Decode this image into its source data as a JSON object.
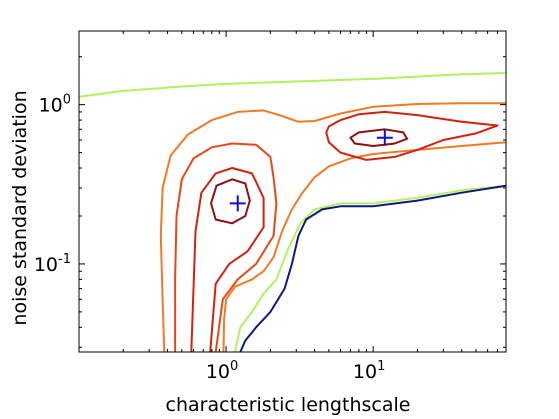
{
  "chart_data": {
    "type": "contour",
    "xlabel": "characteristic lengthscale",
    "ylabel": "noise standard deviation",
    "x_scale": "log",
    "y_scale": "log",
    "xlim": [
      0.1,
      80
    ],
    "ylim": [
      0.028,
      2.9
    ],
    "x_ticks": [
      {
        "base": "10",
        "exp": "0",
        "value": 1
      },
      {
        "base": "10",
        "exp": "1",
        "value": 10
      }
    ],
    "y_ticks": [
      {
        "base": "10",
        "exp": "-1",
        "value": 0.1
      },
      {
        "base": "10",
        "exp": "0",
        "value": 1
      }
    ],
    "grid": false,
    "contours": [
      {
        "level": 1,
        "color": "#b5f060",
        "points": [
          [
            0.1,
            1.12
          ],
          [
            0.2,
            1.22
          ],
          [
            0.5,
            1.3
          ],
          [
            1,
            1.35
          ],
          [
            2,
            1.38
          ],
          [
            5,
            1.42
          ],
          [
            10,
            1.45
          ],
          [
            20,
            1.5
          ],
          [
            40,
            1.55
          ],
          [
            80,
            1.58
          ]
        ]
      },
      {
        "level": 2,
        "color": "#f07a26",
        "points": [
          [
            0.38,
            0.028
          ],
          [
            0.37,
            0.06
          ],
          [
            0.36,
            0.15
          ],
          [
            0.37,
            0.3
          ],
          [
            0.42,
            0.48
          ],
          [
            0.55,
            0.65
          ],
          [
            0.8,
            0.8
          ],
          [
            1.2,
            0.9
          ],
          [
            1.8,
            0.92
          ],
          [
            2.4,
            0.85
          ],
          [
            3.1,
            0.78
          ],
          [
            4,
            0.79
          ],
          [
            6,
            0.88
          ],
          [
            10,
            0.97
          ],
          [
            20,
            1.01
          ],
          [
            40,
            1.02
          ],
          [
            80,
            1.02
          ]
        ]
      },
      {
        "level": 2,
        "color": "#f07a26",
        "points": [
          [
            0.96,
            0.028
          ],
          [
            0.97,
            0.045
          ],
          [
            1.0,
            0.06
          ],
          [
            1.15,
            0.072
          ],
          [
            1.5,
            0.08
          ],
          [
            1.8,
            0.09
          ],
          [
            2.1,
            0.11
          ],
          [
            2.4,
            0.16
          ],
          [
            2.8,
            0.22
          ],
          [
            3.3,
            0.28
          ],
          [
            4,
            0.35
          ],
          [
            5,
            0.41
          ],
          [
            7,
            0.46
          ],
          [
            10,
            0.49
          ],
          [
            20,
            0.52
          ],
          [
            40,
            0.55
          ],
          [
            80,
            0.58
          ]
        ]
      },
      {
        "level": 3,
        "color": "#e84818",
        "points": [
          [
            0.45,
            0.028
          ],
          [
            0.45,
            0.08
          ],
          [
            0.46,
            0.2
          ],
          [
            0.5,
            0.34
          ],
          [
            0.6,
            0.46
          ],
          [
            0.8,
            0.54
          ],
          [
            1.1,
            0.57
          ],
          [
            1.6,
            0.56
          ],
          [
            2.0,
            0.47
          ],
          [
            2.1,
            0.35
          ],
          [
            2.2,
            0.24
          ],
          [
            2.1,
            0.15
          ],
          [
            1.6,
            0.1
          ],
          [
            1.2,
            0.08
          ],
          [
            0.95,
            0.06
          ],
          [
            0.85,
            0.028
          ]
        ]
      },
      {
        "level": 4,
        "color": "#d42010",
        "points": [
          [
            0.58,
            0.028
          ],
          [
            0.6,
            0.07
          ],
          [
            0.62,
            0.16
          ],
          [
            0.68,
            0.28
          ],
          [
            0.85,
            0.37
          ],
          [
            1.1,
            0.4
          ],
          [
            1.5,
            0.37
          ],
          [
            1.8,
            0.26
          ],
          [
            1.8,
            0.17
          ],
          [
            1.4,
            0.12
          ],
          [
            1.05,
            0.1
          ],
          [
            0.85,
            0.075
          ],
          [
            0.78,
            0.028
          ]
        ]
      },
      {
        "level": 4,
        "color": "#d42010",
        "points": [
          [
            5,
            0.73
          ],
          [
            6,
            0.8
          ],
          [
            8,
            0.87
          ],
          [
            12,
            0.9
          ],
          [
            20,
            0.86
          ],
          [
            40,
            0.78
          ],
          [
            70,
            0.74
          ],
          [
            50,
            0.66
          ],
          [
            30,
            0.6
          ],
          [
            20,
            0.52
          ],
          [
            14,
            0.47
          ],
          [
            9,
            0.45
          ],
          [
            6,
            0.5
          ],
          [
            5,
            0.58
          ],
          [
            4.8,
            0.67
          ],
          [
            5,
            0.73
          ]
        ]
      },
      {
        "level": 5,
        "color": "#8c1010",
        "points": [
          [
            0.79,
            0.24
          ],
          [
            0.86,
            0.31
          ],
          [
            1.1,
            0.34
          ],
          [
            1.35,
            0.32
          ],
          [
            1.45,
            0.25
          ],
          [
            1.35,
            0.2
          ],
          [
            1.1,
            0.18
          ],
          [
            0.85,
            0.19
          ],
          [
            0.79,
            0.24
          ]
        ]
      },
      {
        "level": 5,
        "color": "#8c1010",
        "points": [
          [
            7,
            0.62
          ],
          [
            8,
            0.67
          ],
          [
            12,
            0.7
          ],
          [
            16,
            0.67
          ],
          [
            17,
            0.61
          ],
          [
            14,
            0.57
          ],
          [
            10,
            0.55
          ],
          [
            7.5,
            0.57
          ],
          [
            7,
            0.62
          ]
        ]
      },
      {
        "level": 6,
        "color": "#b5f060",
        "points": [
          [
            1.15,
            0.028
          ],
          [
            1.25,
            0.04
          ],
          [
            1.5,
            0.05
          ],
          [
            1.8,
            0.065
          ],
          [
            2.2,
            0.08
          ],
          [
            2.6,
            0.12
          ],
          [
            3.2,
            0.18
          ],
          [
            4,
            0.22
          ],
          [
            6,
            0.24
          ],
          [
            10,
            0.24
          ],
          [
            20,
            0.26
          ],
          [
            40,
            0.29
          ],
          [
            80,
            0.31
          ]
        ]
      },
      {
        "level": 7,
        "color": "#101880",
        "points": [
          [
            1.25,
            0.028
          ],
          [
            1.35,
            0.033
          ],
          [
            1.6,
            0.04
          ],
          [
            2.0,
            0.05
          ],
          [
            2.5,
            0.07
          ],
          [
            2.8,
            0.1
          ],
          [
            3.1,
            0.15
          ],
          [
            3.5,
            0.19
          ],
          [
            4.5,
            0.22
          ],
          [
            6,
            0.23
          ],
          [
            10,
            0.23
          ],
          [
            20,
            0.25
          ],
          [
            40,
            0.28
          ],
          [
            80,
            0.31
          ]
        ]
      }
    ],
    "markers": [
      {
        "symbol": "+",
        "color": "#1010d0",
        "x": 1.2,
        "y": 0.24
      },
      {
        "symbol": "+",
        "color": "#1010d0",
        "x": 12,
        "y": 0.62
      }
    ]
  }
}
